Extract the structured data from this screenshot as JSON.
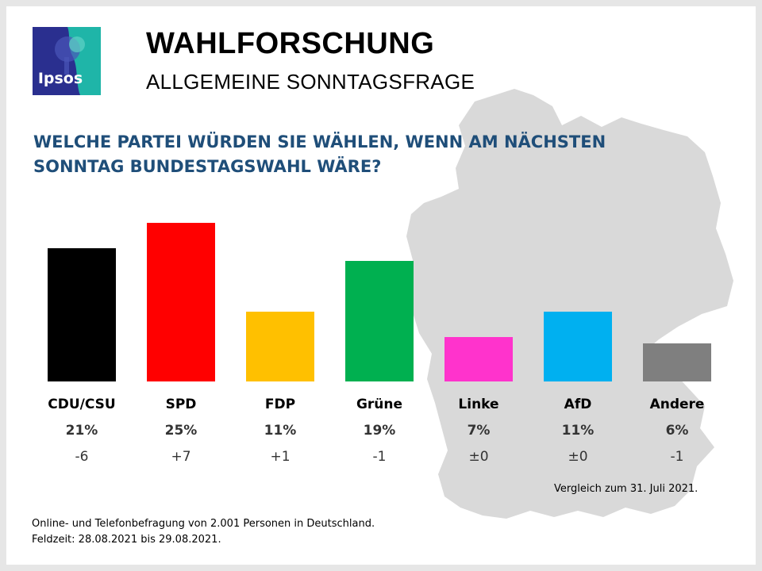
{
  "header": {
    "logo_text": "Ipsos",
    "title": "WAHLFORSCHUNG",
    "subtitle": "ALLGEMEINE SONNTAGSFRAGE"
  },
  "question": "WELCHE PARTEI WÜRDEN SIE WÄHLEN, WENN AM NÄCHSTEN SONNTAG BUNDESTAGSWAHL WÄRE?",
  "chart_data": {
    "type": "bar",
    "title": "",
    "categories": [
      "CDU/CSU",
      "SPD",
      "FDP",
      "Grüne",
      "Linke",
      "AfD",
      "Andere"
    ],
    "values": [
      21,
      25,
      11,
      19,
      7,
      11,
      6
    ],
    "value_labels": [
      "21%",
      "25%",
      "11%",
      "19%",
      "7%",
      "11%",
      "6%"
    ],
    "changes": [
      "-6",
      "+7",
      "+1",
      "-1",
      "±0",
      "±0",
      "-1"
    ],
    "colors": [
      "#000000",
      "#ff0000",
      "#ffc000",
      "#00b050",
      "#ff33cc",
      "#00b0f0",
      "#7f7f7f"
    ],
    "ylim": [
      0,
      25
    ],
    "grid": false
  },
  "notes": {
    "comparison": "Vergleich zum 31. Juli 2021.",
    "survey_line1": "Online- und Telefonbefragung von 2.001 Personen in Deutschland.",
    "survey_line2": "Feldzeit: 28.08.2021 bis 29.08.2021."
  },
  "colors": {
    "question": "#1f4e79",
    "map": "#d9d9d9",
    "logo_dark": "#2a2f8f",
    "logo_teal": "#1fb5a8"
  },
  "icons": {
    "logo": "ipsos-logo",
    "background": "germany-map"
  }
}
